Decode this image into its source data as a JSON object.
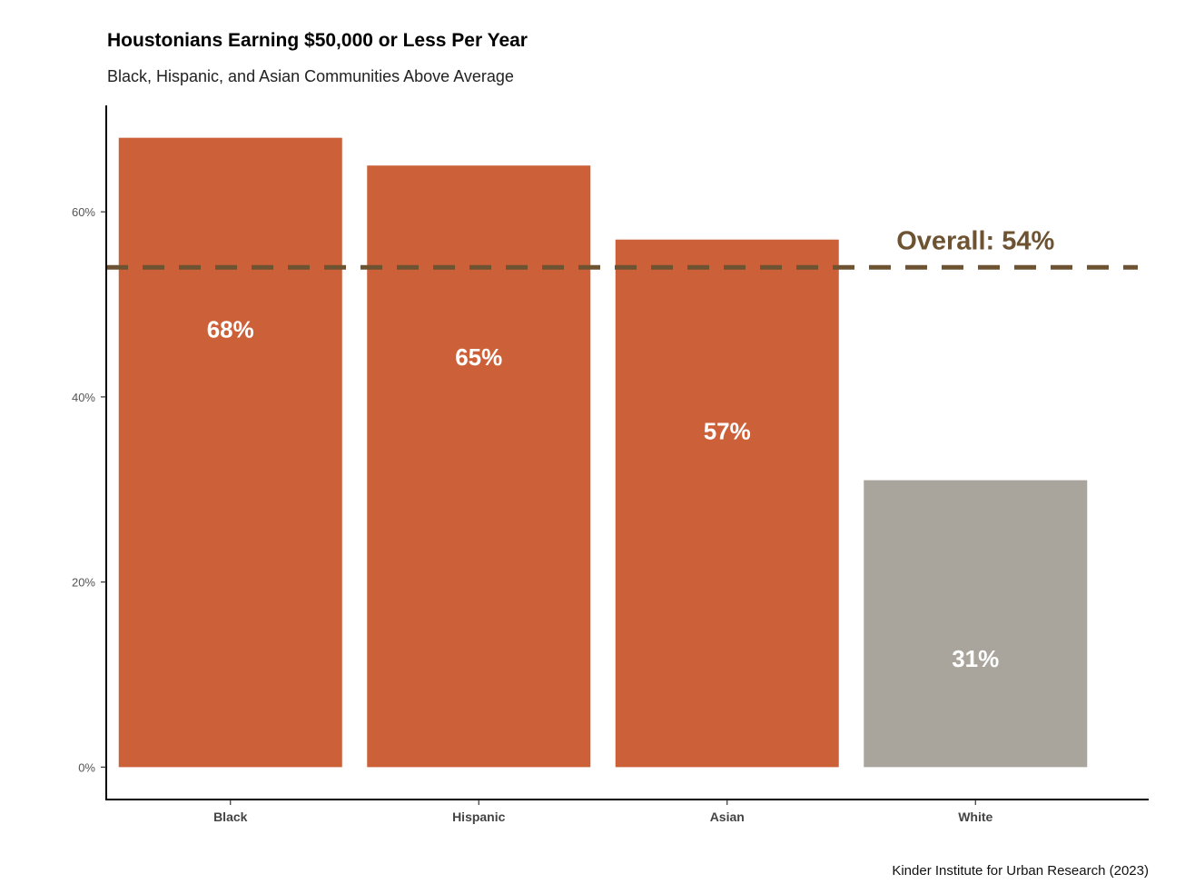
{
  "chart_data": {
    "type": "bar",
    "title": "Houstonians Earning $50,000 or Less Per Year",
    "subtitle": "Black, Hispanic, and Asian Communities Above Average",
    "caption": "Kinder Institute for Urban Research (2023)",
    "categories": [
      "Black",
      "Hispanic",
      "Asian",
      "White"
    ],
    "values": [
      68,
      65,
      57,
      31
    ],
    "value_labels": [
      "68%",
      "65%",
      "57%",
      "31%"
    ],
    "bar_colors": [
      "#cc6139",
      "#cc6139",
      "#cc6139",
      "#a9a59c"
    ],
    "y_ticks": [
      0,
      20,
      40,
      60
    ],
    "y_tick_labels": [
      "0%",
      "20%",
      "40%",
      "60%"
    ],
    "ylim": [
      -3.5,
      71.5
    ],
    "xlabel": "",
    "ylabel": "",
    "grid": false,
    "reference_line": {
      "value": 54,
      "label": "Overall: 54%",
      "color": "#6d5332",
      "style": "dashed"
    }
  }
}
